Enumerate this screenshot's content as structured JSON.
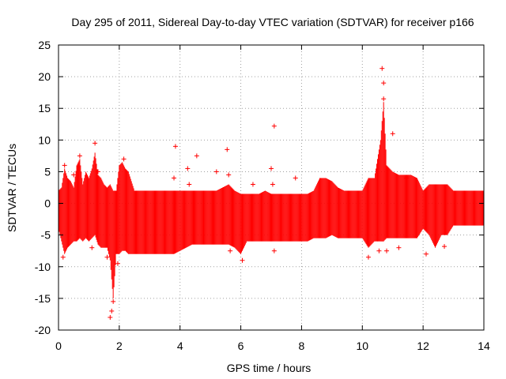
{
  "chart_data": {
    "type": "scatter",
    "title": "Day 295 of 2011, Sidereal Day-to-day VTEC variation (SDTVAR) for receiver p166",
    "xlabel": "GPS time / hours",
    "ylabel": "SDTVAR / TECUs",
    "xlim": [
      0,
      14
    ],
    "ylim": [
      -20,
      25
    ],
    "xticks": [
      0,
      2,
      4,
      6,
      8,
      10,
      12,
      14
    ],
    "yticks": [
      -20,
      -15,
      -10,
      -5,
      0,
      5,
      10,
      15,
      20,
      25
    ],
    "xtick_labels": [
      "0",
      "2",
      "4",
      "6",
      "8",
      "10",
      "12",
      "14"
    ],
    "ytick_labels": [
      "-20",
      "-15",
      "-10",
      "-5",
      "0",
      "5",
      "10",
      "15",
      "20",
      "25"
    ],
    "grid": true,
    "marker": "plus",
    "color": "#ff0000",
    "series": [
      {
        "name": "p166",
        "envelope_x": [
          0.0,
          0.1,
          0.2,
          0.3,
          0.4,
          0.5,
          0.6,
          0.7,
          0.8,
          0.9,
          1.0,
          1.1,
          1.2,
          1.3,
          1.4,
          1.5,
          1.6,
          1.7,
          1.8,
          1.9,
          2.0,
          2.1,
          2.2,
          2.3,
          2.4,
          2.5,
          2.6,
          2.7,
          2.8,
          3.0,
          3.2,
          3.4,
          3.6,
          3.8,
          4.0,
          4.2,
          4.4,
          4.6,
          4.8,
          5.0,
          5.2,
          5.4,
          5.6,
          5.8,
          6.0,
          6.2,
          6.4,
          6.6,
          6.8,
          7.0,
          7.2,
          7.4,
          7.6,
          7.8,
          8.0,
          8.2,
          8.4,
          8.6,
          8.8,
          9.0,
          9.2,
          9.4,
          9.6,
          9.8,
          10.0,
          10.2,
          10.4,
          10.6,
          10.7,
          10.8,
          11.0,
          11.2,
          11.4,
          11.6,
          11.8,
          12.0,
          12.2,
          12.4,
          12.6,
          12.8,
          13.0,
          13.2,
          13.4,
          13.6,
          13.8,
          14.0
        ],
        "envelope_upper": [
          2.0,
          2.5,
          5.5,
          4.0,
          3.5,
          2.5,
          6.0,
          7.0,
          3.0,
          5.0,
          4.0,
          5.5,
          8.0,
          4.5,
          4.0,
          3.0,
          2.5,
          3.0,
          2.0,
          2.0,
          6.0,
          6.5,
          5.5,
          5.0,
          3.5,
          2.0,
          2.0,
          2.0,
          2.0,
          2.0,
          2.0,
          2.0,
          2.0,
          2.0,
          2.0,
          2.0,
          2.0,
          2.0,
          2.0,
          2.0,
          2.0,
          2.5,
          3.0,
          2.0,
          1.5,
          1.5,
          1.5,
          1.5,
          2.0,
          1.5,
          1.5,
          1.5,
          1.5,
          1.5,
          1.5,
          1.5,
          2.0,
          4.0,
          4.0,
          3.5,
          2.5,
          2.0,
          2.0,
          2.0,
          2.0,
          4.0,
          4.0,
          10.0,
          16.0,
          6.0,
          5.0,
          4.5,
          4.5,
          4.5,
          4.0,
          2.0,
          3.0,
          3.0,
          3.0,
          3.0,
          2.0,
          2.0,
          2.0,
          2.0,
          2.0,
          2.0
        ],
        "envelope_lower": [
          -4.0,
          -6.0,
          -8.0,
          -7.0,
          -6.5,
          -6.0,
          -6.0,
          -5.5,
          -6.0,
          -5.5,
          -6.0,
          -5.5,
          -5.0,
          -6.5,
          -7.0,
          -7.0,
          -7.0,
          -9.0,
          -15.0,
          -8.0,
          -8.0,
          -7.5,
          -7.5,
          -8.0,
          -8.0,
          -8.0,
          -8.0,
          -8.0,
          -8.0,
          -8.0,
          -8.0,
          -8.0,
          -8.0,
          -8.0,
          -7.5,
          -7.0,
          -6.5,
          -6.5,
          -6.5,
          -6.5,
          -6.5,
          -6.5,
          -6.5,
          -7.0,
          -8.0,
          -6.0,
          -6.0,
          -6.0,
          -6.0,
          -6.0,
          -6.0,
          -6.0,
          -6.0,
          -6.0,
          -6.0,
          -6.0,
          -5.5,
          -5.5,
          -5.5,
          -5.0,
          -5.5,
          -5.5,
          -5.5,
          -5.5,
          -5.5,
          -7.0,
          -6.0,
          -6.0,
          -6.0,
          -5.5,
          -5.5,
          -5.5,
          -5.5,
          -5.5,
          -5.5,
          -4.0,
          -5.0,
          -7.0,
          -5.0,
          -5.0,
          -3.5,
          -3.5,
          -3.5,
          -3.5,
          -3.5,
          -3.5
        ],
        "outliers": [
          {
            "x": 0.15,
            "y": -8.5
          },
          {
            "x": 0.2,
            "y": 6.0
          },
          {
            "x": 0.5,
            "y": 4.5
          },
          {
            "x": 0.7,
            "y": 7.5
          },
          {
            "x": 1.1,
            "y": -7.0
          },
          {
            "x": 1.2,
            "y": 9.5
          },
          {
            "x": 1.3,
            "y": 5.0
          },
          {
            "x": 1.6,
            "y": -8.5
          },
          {
            "x": 1.7,
            "y": -18.0
          },
          {
            "x": 1.75,
            "y": -17.0
          },
          {
            "x": 1.8,
            "y": -15.5
          },
          {
            "x": 1.95,
            "y": -9.5
          },
          {
            "x": 2.15,
            "y": 7.0
          },
          {
            "x": 3.85,
            "y": 9.0
          },
          {
            "x": 3.8,
            "y": 4.0
          },
          {
            "x": 4.25,
            "y": 5.5
          },
          {
            "x": 4.3,
            "y": 3.0
          },
          {
            "x": 4.55,
            "y": 7.5
          },
          {
            "x": 5.2,
            "y": 5.0
          },
          {
            "x": 5.55,
            "y": 8.5
          },
          {
            "x": 5.6,
            "y": 4.5
          },
          {
            "x": 5.65,
            "y": -7.5
          },
          {
            "x": 6.05,
            "y": -9.0
          },
          {
            "x": 6.4,
            "y": 3.0
          },
          {
            "x": 7.1,
            "y": 12.2
          },
          {
            "x": 7.0,
            "y": 5.5
          },
          {
            "x": 7.05,
            "y": 3.0
          },
          {
            "x": 7.1,
            "y": -7.5
          },
          {
            "x": 7.8,
            "y": 4.0
          },
          {
            "x": 10.2,
            "y": -8.5
          },
          {
            "x": 10.55,
            "y": -7.5
          },
          {
            "x": 10.65,
            "y": 21.3
          },
          {
            "x": 10.7,
            "y": 19.0
          },
          {
            "x": 10.7,
            "y": 16.5
          },
          {
            "x": 10.8,
            "y": -7.5
          },
          {
            "x": 11.0,
            "y": 11.0
          },
          {
            "x": 11.2,
            "y": -7.0
          },
          {
            "x": 11.45,
            "y": 4.0
          },
          {
            "x": 12.1,
            "y": -8.0
          },
          {
            "x": 12.7,
            "y": -6.8
          }
        ]
      }
    ]
  }
}
